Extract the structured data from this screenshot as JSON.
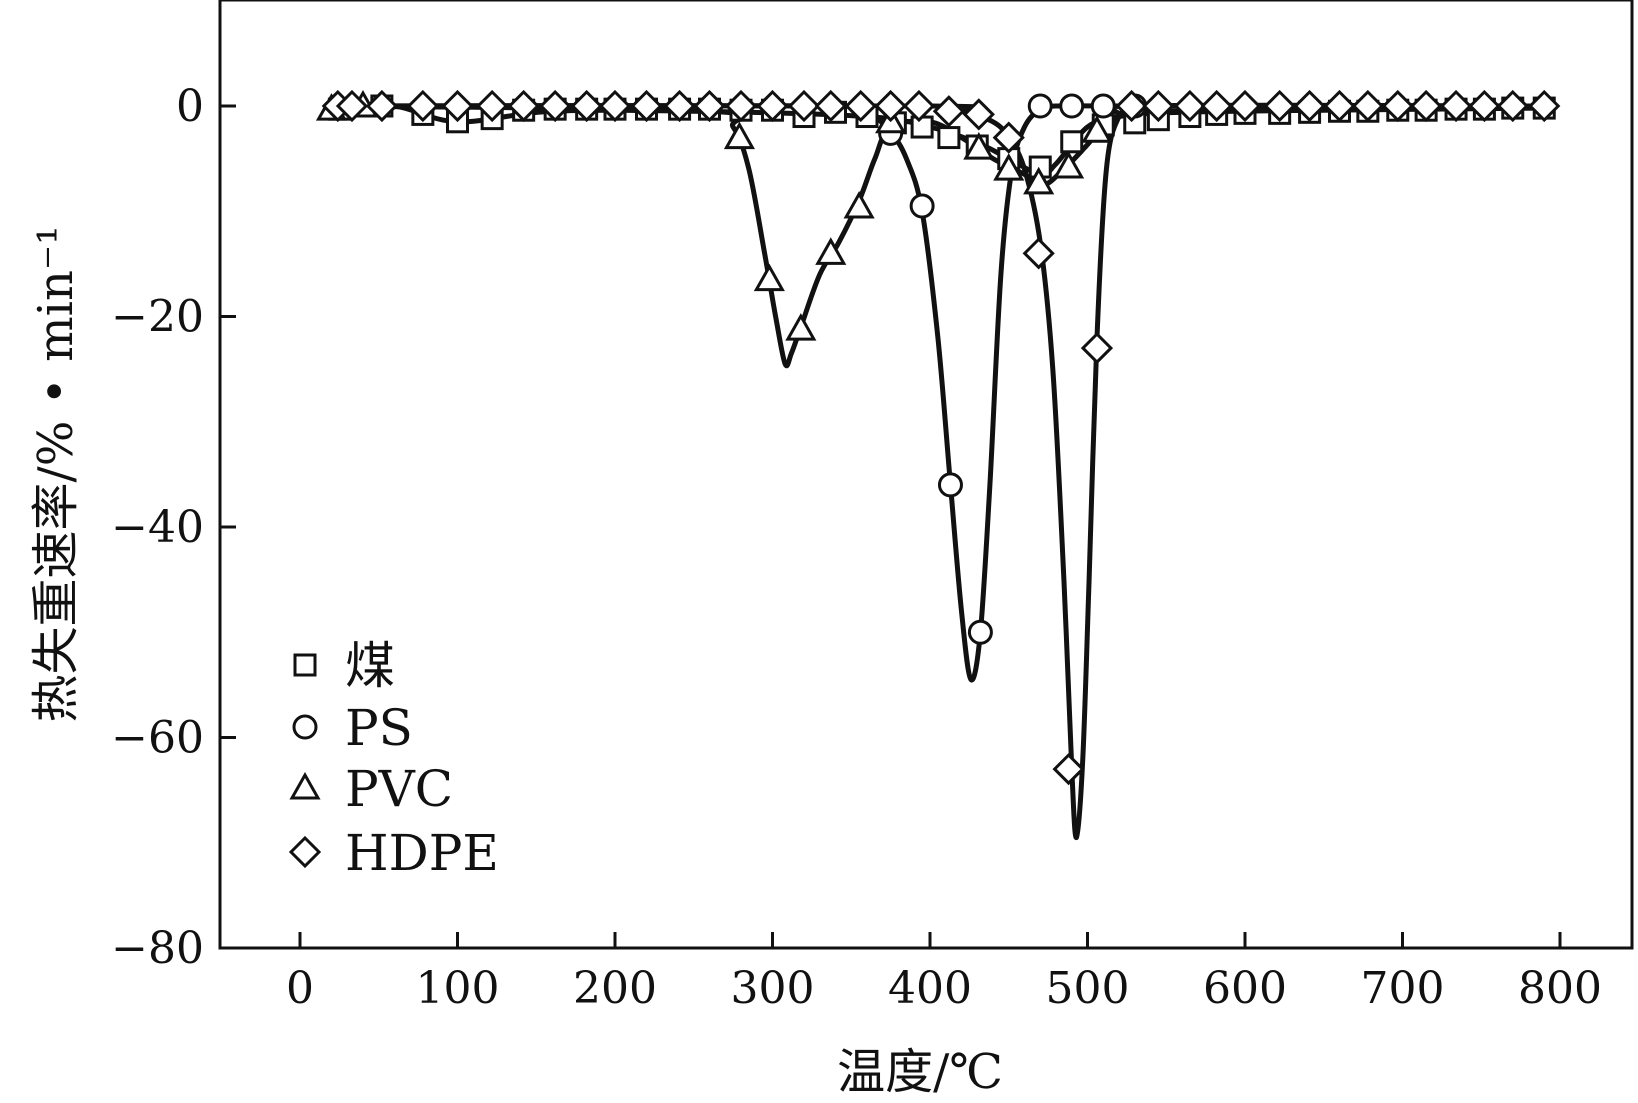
{
  "chart_data": {
    "type": "line",
    "title": "",
    "xlabel": "温度/℃",
    "ylabel": "热失重速率/% • min⁻¹",
    "xlim": [
      -50,
      845
    ],
    "ylim": [
      -80,
      10
    ],
    "xticks": [
      0,
      100,
      200,
      300,
      400,
      500,
      600,
      700,
      800
    ],
    "yticks": [
      0,
      -20,
      -40,
      -60,
      -80
    ],
    "xtick_labels": [
      "0",
      "100",
      "200",
      "300",
      "400",
      "500",
      "600",
      "700",
      "800"
    ],
    "ytick_labels": [
      "0",
      "−20",
      "−40",
      "−60",
      "−80"
    ],
    "grid": false,
    "legend_position": "lower-left",
    "series": [
      {
        "name": "煤",
        "marker": "square",
        "curve": [
          [
            20,
            0
          ],
          [
            60,
            0
          ],
          [
            100,
            -1.5
          ],
          [
            160,
            -0.5
          ],
          [
            250,
            -0.5
          ],
          [
            360,
            -1.0
          ],
          [
            400,
            -2
          ],
          [
            430,
            -3.5
          ],
          [
            450,
            -5
          ],
          [
            470,
            -6.5
          ],
          [
            480,
            -5.5
          ],
          [
            500,
            -2
          ],
          [
            520,
            -1
          ],
          [
            560,
            -0.6
          ],
          [
            650,
            -0.4
          ],
          [
            790,
            -0.2
          ]
        ],
        "points": [
          [
            25,
            -0.3
          ],
          [
            52,
            0
          ],
          [
            78,
            -0.8
          ],
          [
            100,
            -1.5
          ],
          [
            122,
            -1.2
          ],
          [
            142,
            -0.4
          ],
          [
            162,
            -0.3
          ],
          [
            182,
            -0.3
          ],
          [
            200,
            -0.3
          ],
          [
            220,
            -0.3
          ],
          [
            241,
            -0.3
          ],
          [
            260,
            -0.3
          ],
          [
            280,
            -0.4
          ],
          [
            300,
            -0.4
          ],
          [
            320,
            -1
          ],
          [
            340,
            -0.6
          ],
          [
            360,
            -1
          ],
          [
            378,
            -1.6
          ],
          [
            395,
            -2
          ],
          [
            412,
            -3
          ],
          [
            430,
            -3.8
          ],
          [
            450,
            -5
          ],
          [
            470,
            -5.8
          ],
          [
            490,
            -3.4
          ],
          [
            510,
            -1.8
          ],
          [
            530,
            -1.6
          ],
          [
            545,
            -1.3
          ],
          [
            565,
            -1
          ],
          [
            582,
            -0.8
          ],
          [
            600,
            -0.7
          ],
          [
            622,
            -0.7
          ],
          [
            641,
            -0.6
          ],
          [
            660,
            -0.5
          ],
          [
            678,
            -0.5
          ],
          [
            697,
            -0.4
          ],
          [
            715,
            -0.4
          ],
          [
            734,
            -0.3
          ],
          [
            752,
            -0.3
          ],
          [
            770,
            -0.2
          ],
          [
            790,
            -0.2
          ]
        ]
      },
      {
        "name": "PS",
        "marker": "circle",
        "curve": [
          [
            20,
            0
          ],
          [
            340,
            0
          ],
          [
            360,
            -0.5
          ],
          [
            375,
            -2.5
          ],
          [
            385,
            -5
          ],
          [
            395,
            -10
          ],
          [
            405,
            -22
          ],
          [
            413,
            -36
          ],
          [
            420,
            -48
          ],
          [
            426,
            -54.5
          ],
          [
            432,
            -50
          ],
          [
            438,
            -36
          ],
          [
            445,
            -16
          ],
          [
            452,
            -6
          ],
          [
            460,
            -2
          ],
          [
            470,
            -0.3
          ],
          [
            480,
            0
          ],
          [
            530,
            0
          ],
          [
            790,
            0
          ]
        ],
        "points": [
          [
            375,
            -2.6
          ],
          [
            395,
            -9.5
          ],
          [
            413,
            -36
          ],
          [
            432,
            -50
          ],
          [
            470,
            0
          ],
          [
            490,
            0
          ],
          [
            510,
            0
          ],
          [
            530,
            0
          ]
        ]
      },
      {
        "name": "PVC",
        "marker": "triangle",
        "curve": [
          [
            20,
            0
          ],
          [
            260,
            -0.5
          ],
          [
            275,
            -2
          ],
          [
            285,
            -6
          ],
          [
            295,
            -14
          ],
          [
            302,
            -20
          ],
          [
            308,
            -24.5
          ],
          [
            312,
            -23.5
          ],
          [
            318,
            -21
          ],
          [
            330,
            -16
          ],
          [
            342,
            -13
          ],
          [
            355,
            -9
          ],
          [
            365,
            -5
          ],
          [
            375,
            -2
          ],
          [
            400,
            -1.5
          ],
          [
            420,
            -3
          ],
          [
            440,
            -5
          ],
          [
            460,
            -6.5
          ],
          [
            472,
            -7.5
          ],
          [
            485,
            -6
          ],
          [
            498,
            -4
          ],
          [
            507,
            -2.5
          ],
          [
            520,
            -1
          ],
          [
            550,
            -0.5
          ],
          [
            790,
            0
          ]
        ],
        "points": [
          [
            20,
            -0.3
          ],
          [
            40,
            0
          ],
          [
            279,
            -3
          ],
          [
            298,
            -16.5
          ],
          [
            318,
            -21.2
          ],
          [
            337,
            -14
          ],
          [
            355,
            -9.6
          ],
          [
            375,
            -1.5
          ],
          [
            431,
            -4
          ],
          [
            450,
            -6
          ],
          [
            469,
            -7.3
          ],
          [
            488,
            -5.8
          ],
          [
            506,
            -2.4
          ]
        ]
      },
      {
        "name": "HDPE",
        "marker": "diamond",
        "curve": [
          [
            20,
            0
          ],
          [
            400,
            0
          ],
          [
            420,
            -0.5
          ],
          [
            440,
            -1.5
          ],
          [
            450,
            -3
          ],
          [
            460,
            -6
          ],
          [
            470,
            -13
          ],
          [
            478,
            -25
          ],
          [
            485,
            -45
          ],
          [
            490,
            -63
          ],
          [
            493,
            -69.5
          ],
          [
            497,
            -62
          ],
          [
            501,
            -45
          ],
          [
            506,
            -22
          ],
          [
            512,
            -6
          ],
          [
            520,
            -1
          ],
          [
            530,
            0
          ],
          [
            790,
            0
          ]
        ],
        "points": [
          [
            24,
            0
          ],
          [
            33,
            0
          ],
          [
            52,
            0
          ],
          [
            78,
            0
          ],
          [
            100,
            0
          ],
          [
            122,
            0
          ],
          [
            142,
            0
          ],
          [
            162,
            0
          ],
          [
            182,
            0
          ],
          [
            200,
            0
          ],
          [
            220,
            0
          ],
          [
            241,
            0
          ],
          [
            260,
            0
          ],
          [
            280,
            0
          ],
          [
            300,
            0
          ],
          [
            320,
            0
          ],
          [
            337,
            0
          ],
          [
            356,
            0
          ],
          [
            375,
            0
          ],
          [
            393,
            0
          ],
          [
            412,
            -0.5
          ],
          [
            431,
            -0.8
          ],
          [
            450,
            -3
          ],
          [
            469,
            -14
          ],
          [
            488,
            -63
          ],
          [
            506,
            -23
          ],
          [
            528,
            0
          ],
          [
            545,
            0
          ],
          [
            565,
            0
          ],
          [
            582,
            0
          ],
          [
            600,
            0
          ],
          [
            622,
            0
          ],
          [
            641,
            0
          ],
          [
            660,
            0
          ],
          [
            678,
            0
          ],
          [
            697,
            0
          ],
          [
            715,
            0
          ],
          [
            734,
            0
          ],
          [
            752,
            0
          ],
          [
            770,
            0
          ],
          [
            790,
            0
          ]
        ]
      }
    ]
  }
}
